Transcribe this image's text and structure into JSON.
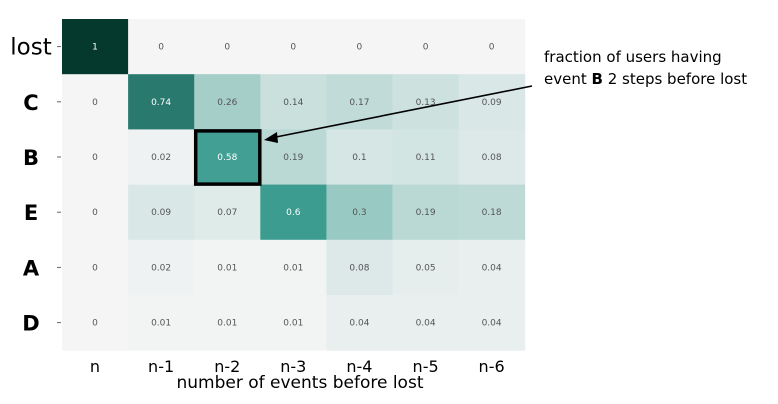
{
  "chart_data": {
    "type": "heatmap",
    "rows": [
      "lost",
      "C",
      "B",
      "E",
      "A",
      "D"
    ],
    "columns": [
      "n",
      "n-1",
      "n-2",
      "n-3",
      "n-4",
      "n-5",
      "n-6"
    ],
    "values": [
      [
        1,
        0,
        0,
        0,
        0,
        0,
        0
      ],
      [
        0,
        0.74,
        0.26,
        0.14,
        0.17,
        0.13,
        0.09
      ],
      [
        0,
        0.02,
        0.58,
        0.19,
        0.1,
        0.11,
        0.08
      ],
      [
        0,
        0.09,
        0.07,
        0.6,
        0.3,
        0.19,
        0.18
      ],
      [
        0,
        0.02,
        0.01,
        0.01,
        0.08,
        0.05,
        0.04
      ],
      [
        0,
        0.01,
        0.01,
        0.01,
        0.04,
        0.04,
        0.04
      ]
    ],
    "xlabel": "number of events before lost",
    "highlight": {
      "row": "B",
      "column": "n-2"
    },
    "annotation": {
      "line1": "fraction of users having",
      "line2_prefix": "event ",
      "line2_bold": "B",
      "line2_suffix": " 2 steps before lost"
    },
    "colors": {
      "low": "#f5f5f5",
      "mid": "#3c9c90",
      "high": "#06392e"
    }
  }
}
